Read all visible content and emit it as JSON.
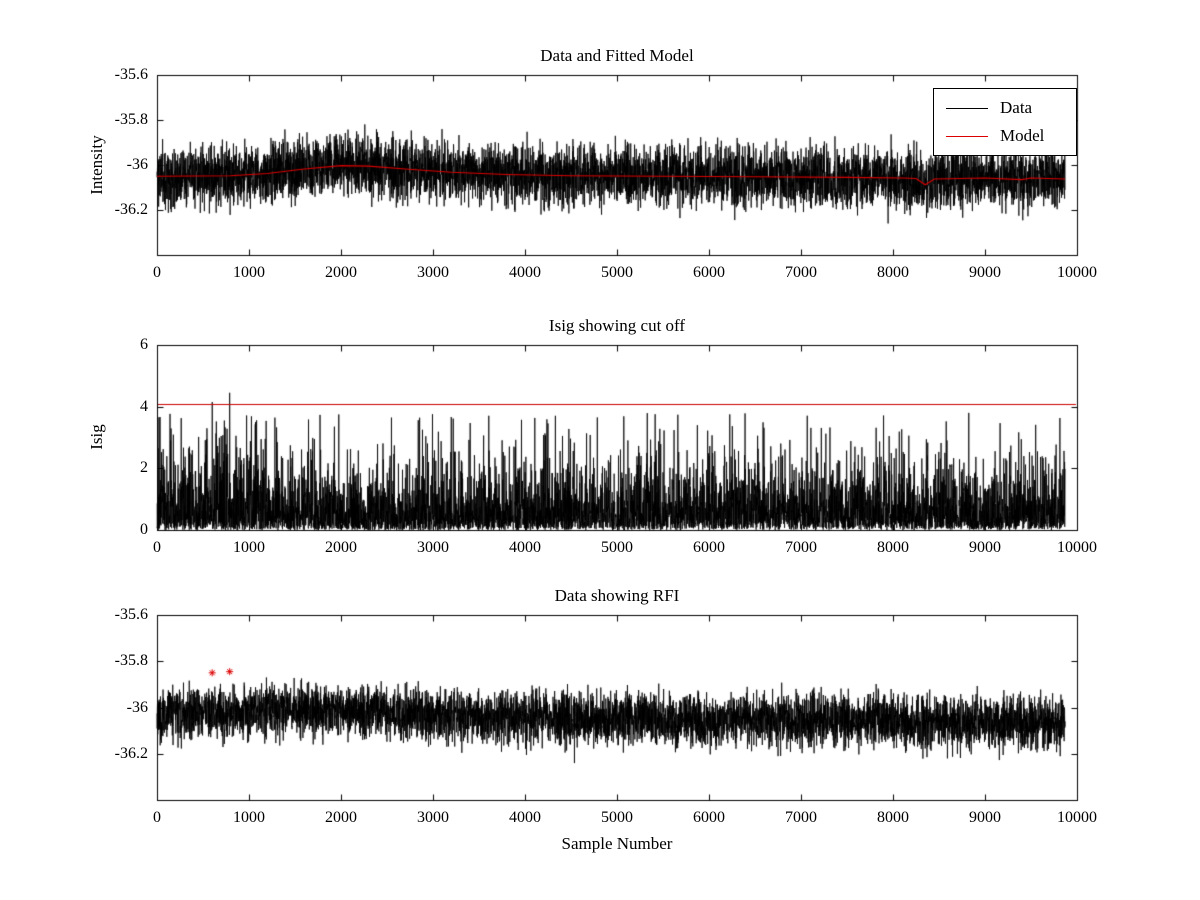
{
  "figure": {
    "background": "#ffffff"
  },
  "chart_data": [
    {
      "type": "line",
      "title": "Data and Fitted Model",
      "ylabel": "Intensity",
      "xlabel": "",
      "xlim": [
        0,
        10000
      ],
      "ylim": [
        -36.4,
        -35.6
      ],
      "xticks": [
        0,
        1000,
        2000,
        3000,
        4000,
        5000,
        6000,
        7000,
        8000,
        9000,
        10000
      ],
      "yticks": [
        -35.6,
        -35.8,
        -36,
        -36.2
      ],
      "grid": false,
      "legend": {
        "position": "top-right",
        "entries": [
          {
            "label": "Data",
            "color": "#000000"
          },
          {
            "label": "Model",
            "color": "#dd0000"
          }
        ]
      },
      "series": [
        {
          "name": "Data",
          "kind": "noise",
          "color": "#000000",
          "n": 6000,
          "seed": 11,
          "x_end": 9870,
          "amplitude": 0.2,
          "spike_prob": 0.012,
          "spike_gain": 1.3,
          "mean_points": [
            [
              0,
              -36.05
            ],
            [
              800,
              -36.048
            ],
            [
              1200,
              -36.038
            ],
            [
              1600,
              -36.018
            ],
            [
              2000,
              -36.003
            ],
            [
              2300,
              -36.005
            ],
            [
              2700,
              -36.018
            ],
            [
              3200,
              -36.032
            ],
            [
              3800,
              -36.042
            ],
            [
              4500,
              -36.048
            ],
            [
              5500,
              -36.05
            ],
            [
              6500,
              -36.052
            ],
            [
              7500,
              -36.055
            ],
            [
              8100,
              -36.058
            ],
            [
              8300,
              -36.07
            ],
            [
              8450,
              -36.062
            ],
            [
              9000,
              -36.058
            ],
            [
              9500,
              -36.06
            ],
            [
              9870,
              -36.062
            ]
          ]
        },
        {
          "name": "Model",
          "kind": "line",
          "color": "#dd0000",
          "points": [
            [
              0,
              -36.05
            ],
            [
              800,
              -36.048
            ],
            [
              1200,
              -36.038
            ],
            [
              1600,
              -36.018
            ],
            [
              2000,
              -36.003
            ],
            [
              2300,
              -36.005
            ],
            [
              2700,
              -36.018
            ],
            [
              3200,
              -36.032
            ],
            [
              3800,
              -36.042
            ],
            [
              4500,
              -36.048
            ],
            [
              5500,
              -36.05
            ],
            [
              6500,
              -36.052
            ],
            [
              7500,
              -36.055
            ],
            [
              8100,
              -36.058
            ],
            [
              8250,
              -36.06
            ],
            [
              8350,
              -36.088
            ],
            [
              8450,
              -36.062
            ],
            [
              9000,
              -36.058
            ],
            [
              9400,
              -36.065
            ],
            [
              9500,
              -36.058
            ],
            [
              9870,
              -36.062
            ]
          ]
        }
      ]
    },
    {
      "type": "line",
      "title": "Isig showing cut off",
      "ylabel": "Isig",
      "xlabel": "",
      "xlim": [
        0,
        10000
      ],
      "ylim": [
        0,
        6
      ],
      "xticks": [
        0,
        1000,
        2000,
        3000,
        4000,
        5000,
        6000,
        7000,
        8000,
        9000,
        10000
      ],
      "yticks": [
        0,
        2,
        4,
        6
      ],
      "grid": false,
      "series": [
        {
          "name": "Isig",
          "kind": "noise-positive",
          "color": "#000000",
          "n": 6000,
          "seed": 23,
          "x_end": 9870,
          "scale": 0.72,
          "cap": 3.8,
          "early_boost_x": 1100,
          "early_boost": 1.2,
          "forced_spikes": [
            [
              600,
              4.15
            ],
            [
              790,
              4.45
            ]
          ]
        },
        {
          "name": "cutoff",
          "kind": "hline",
          "color": "#cc0000",
          "y": 4.1
        }
      ]
    },
    {
      "type": "line",
      "title": "Data showing RFI",
      "ylabel": "",
      "xlabel": "Sample Number",
      "xlim": [
        0,
        10000
      ],
      "ylim": [
        -36.4,
        -35.6
      ],
      "xticks": [
        0,
        1000,
        2000,
        3000,
        4000,
        5000,
        6000,
        7000,
        8000,
        9000,
        10000
      ],
      "yticks": [
        -35.6,
        -35.8,
        -36,
        -36.2
      ],
      "grid": false,
      "series": [
        {
          "name": "Data",
          "kind": "noise",
          "color": "#000000",
          "n": 6000,
          "seed": 37,
          "x_end": 9870,
          "amplitude": 0.17,
          "spike_prob": 0.01,
          "spike_gain": 1.25,
          "mean_points": [
            [
              0,
              -36.03
            ],
            [
              1000,
              -36.02
            ],
            [
              1800,
              -36.012
            ],
            [
              2600,
              -36.03
            ],
            [
              3500,
              -36.045
            ],
            [
              5000,
              -36.05
            ],
            [
              6500,
              -36.052
            ],
            [
              8000,
              -36.06
            ],
            [
              9870,
              -36.068
            ]
          ]
        },
        {
          "name": "RFI",
          "kind": "markers",
          "color": "#dd0000",
          "marker": "*",
          "points": [
            [
              600,
              -35.85
            ],
            [
              790,
              -35.845
            ]
          ]
        }
      ]
    }
  ]
}
